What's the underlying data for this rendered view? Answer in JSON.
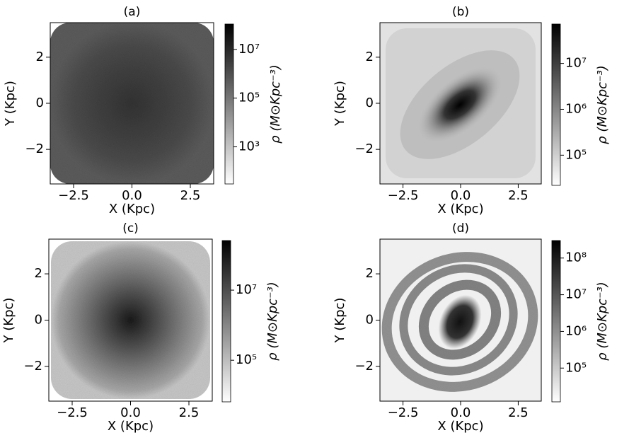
{
  "chart_data": [
    {
      "type": "heatmap",
      "title": "(a)",
      "xlabel": "X (Kpc)",
      "ylabel": "Y (Kpc)",
      "xlim": [
        -3.5,
        3.5
      ],
      "ylim": [
        -3.5,
        3.5
      ],
      "xticks": [
        {
          "value": -2.5,
          "label": "−2.5"
        },
        {
          "value": 0,
          "label": "0.0"
        },
        {
          "value": 2.5,
          "label": "2.5"
        }
      ],
      "yticks": [
        {
          "value": -2,
          "label": "−2"
        },
        0,
        2
      ],
      "colorbar_label": "ρ (M⊙Kpc⁻³)",
      "colormap": "gray_r",
      "color_scale": "log",
      "clim": [
        30,
        110000000
      ],
      "cticks": [
        {
          "value": 1000,
          "label": "10³"
        },
        {
          "value": 100000,
          "label": "10⁵"
        },
        {
          "value": 10000000,
          "label": "10⁷"
        }
      ]
    },
    {
      "type": "heatmap",
      "title": "(b)",
      "xlabel": "X (Kpc)",
      "ylabel": "Y (Kpc)",
      "xlim": [
        -3.5,
        3.5
      ],
      "ylim": [
        -3.5,
        3.5
      ],
      "xticks": [
        {
          "value": -2.5,
          "label": "−2.5"
        },
        {
          "value": 0,
          "label": "0.0"
        },
        {
          "value": 2.5,
          "label": "2.5"
        }
      ],
      "yticks": [
        {
          "value": -2,
          "label": "−2"
        },
        0,
        2
      ],
      "colorbar_label": "ρ (M⊙Kpc⁻³)",
      "colormap": "gray_r",
      "color_scale": "log",
      "clim": [
        22000,
        72000000
      ],
      "cticks": [
        {
          "value": 100000,
          "label": "10⁵"
        },
        {
          "value": 1000000,
          "label": "10⁶"
        },
        {
          "value": 10000000,
          "label": "10⁷"
        }
      ]
    },
    {
      "type": "heatmap",
      "title": "(c)",
      "xlabel": "X (Kpc)",
      "ylabel": "Y (Kpc)",
      "xlim": [
        -3.5,
        3.5
      ],
      "ylim": [
        -3.5,
        3.5
      ],
      "xticks": [
        {
          "value": -2.5,
          "label": "−2.5"
        },
        {
          "value": 0,
          "label": "0.0"
        },
        {
          "value": 2.5,
          "label": "2.5"
        }
      ],
      "yticks": [
        {
          "value": -2,
          "label": "−2"
        },
        0,
        2
      ],
      "colorbar_label": "ρ (M⊙Kpc⁻³)",
      "colormap": "gray_r",
      "color_scale": "log",
      "clim": [
        6500,
        260000000
      ],
      "cticks": [
        {
          "value": 100000,
          "label": "10⁵"
        },
        {
          "value": 10000000,
          "label": "10⁷"
        }
      ]
    },
    {
      "type": "heatmap",
      "title": "(d)",
      "xlabel": "X (Kpc)",
      "ylabel": "Y (Kpc)",
      "xlim": [
        -3.5,
        3.5
      ],
      "ylim": [
        -3.5,
        3.5
      ],
      "xticks": [
        {
          "value": -2.5,
          "label": "−2.5"
        },
        {
          "value": 0,
          "label": "0.0"
        },
        {
          "value": 2.5,
          "label": "2.5"
        }
      ],
      "yticks": [
        {
          "value": -2,
          "label": "−2"
        },
        0,
        2
      ],
      "colorbar_label": "ρ (M⊙Kpc⁻³)",
      "colormap": "gray_r",
      "color_scale": "log",
      "clim": [
        12000,
        300000000
      ],
      "cticks": [
        {
          "value": 100000,
          "label": "10⁵"
        },
        {
          "value": 1000000,
          "label": "10⁶"
        },
        {
          "value": 10000000,
          "label": "10⁷"
        },
        {
          "value": 100000000,
          "label": "10⁸"
        }
      ]
    }
  ]
}
